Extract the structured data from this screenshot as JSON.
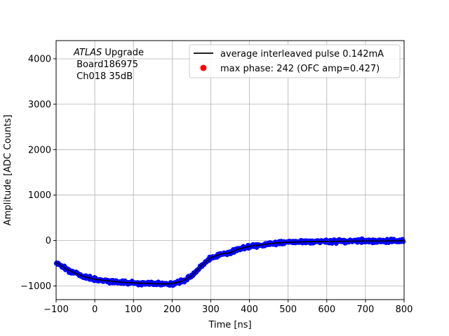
{
  "chart_data": {
    "type": "scatter",
    "xlabel": "Time [ns]",
    "ylabel": "Amplitude [ADC Counts]",
    "xlim": [
      -100,
      800
    ],
    "ylim": [
      -1300,
      4400
    ],
    "xticks": [
      -100,
      0,
      100,
      200,
      300,
      400,
      500,
      600,
      700,
      800
    ],
    "yticks": [
      -1000,
      0,
      1000,
      2000,
      3000,
      4000
    ],
    "grid": true,
    "legend_position": "top-right",
    "annotation": {
      "experiment": "ATLAS",
      "experiment_suffix": " Upgrade",
      "board": " Board186975",
      "channel": " Ch018 35dB"
    },
    "legend": [
      {
        "label": "average interleaved pulse 0.142mA",
        "kind": "line",
        "color": "#000000"
      },
      {
        "label": "max phase: 242 (OFC amp=0.427)",
        "kind": "marker",
        "color": "#ff0000"
      }
    ],
    "average_pulse": {
      "color": "#000000",
      "x": [
        -100,
        -75,
        -50,
        -25,
        0,
        25,
        50,
        75,
        100,
        125,
        150,
        175,
        200,
        225,
        250,
        275,
        300,
        325,
        350,
        375,
        400,
        425,
        450,
        475,
        500,
        550,
        600,
        650,
        700,
        750,
        800
      ],
      "y": [
        -480,
        -620,
        -720,
        -800,
        -850,
        -880,
        -900,
        -920,
        -930,
        -940,
        -950,
        -955,
        -950,
        -900,
        -780,
        -560,
        -380,
        -300,
        -270,
        -180,
        -130,
        -100,
        -75,
        -50,
        -40,
        -25,
        -20,
        -15,
        -10,
        -10,
        -5
      ]
    },
    "samples": {
      "color": "#0000ff",
      "x_start": -100,
      "x_end": 800,
      "spread": 40
    }
  }
}
